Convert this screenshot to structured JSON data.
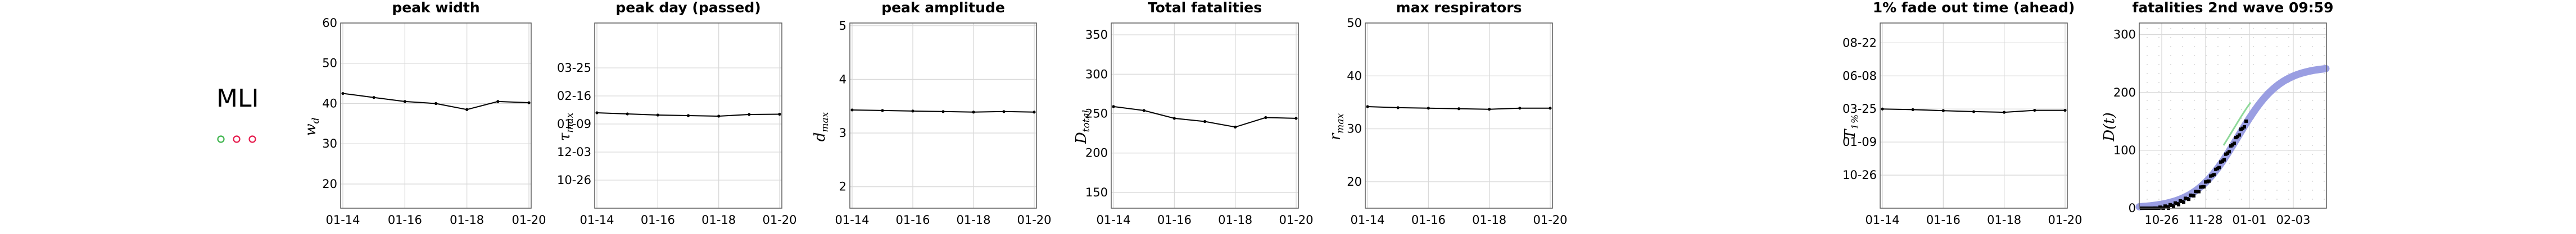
{
  "model_label": "MLI",
  "markers": [
    {
      "color": "#3cb44b"
    },
    {
      "color": "#e6194b"
    },
    {
      "color": "#e6194b"
    }
  ],
  "colors": {
    "band": "#8f93df",
    "points": "#000000",
    "fit": "#8fd99a"
  },
  "chart_data": [
    {
      "type": "line",
      "title": "peak width",
      "ylabel": "w_d",
      "x": [
        "01-14",
        "01-15",
        "01-16",
        "01-17",
        "01-18",
        "01-19",
        "01-20"
      ],
      "x_ticks": [
        "01-14",
        "01-16",
        "01-18",
        "01-20"
      ],
      "y_ticks": [
        "20",
        "30",
        "40",
        "50",
        "60"
      ],
      "ylim": [
        14,
        60
      ],
      "values": [
        42.5,
        41.5,
        40.5,
        40,
        38.5,
        40.5,
        40.2
      ],
      "grid": true
    },
    {
      "type": "line",
      "title": "peak day (passed)",
      "ylabel": "τ_max",
      "x": [
        "01-14",
        "01-15",
        "01-16",
        "01-17",
        "01-18",
        "01-19",
        "01-20"
      ],
      "x_ticks": [
        "01-14",
        "01-16",
        "01-18",
        "01-20"
      ],
      "y_ticks": [
        "10-26",
        "12-03",
        "01-09",
        "02-16",
        "03-25"
      ],
      "ylim": [
        0,
        6.6
      ],
      "values": [
        3.4,
        3.36,
        3.32,
        3.3,
        3.28,
        3.34,
        3.35
      ],
      "grid": true
    },
    {
      "type": "line",
      "title": "peak amplitude",
      "ylabel": "d_max",
      "x": [
        "01-14",
        "01-15",
        "01-16",
        "01-17",
        "01-18",
        "01-19",
        "01-20"
      ],
      "x_ticks": [
        "01-14",
        "01-16",
        "01-18",
        "01-20"
      ],
      "y_ticks": [
        "2",
        "3",
        "4",
        "5"
      ],
      "ylim": [
        1.6,
        5.05
      ],
      "values": [
        3.43,
        3.42,
        3.41,
        3.4,
        3.39,
        3.4,
        3.39
      ],
      "grid": true
    },
    {
      "type": "line",
      "title": "Total fatalities",
      "ylabel": "D_total",
      "x": [
        "01-14",
        "01-15",
        "01-16",
        "01-17",
        "01-18",
        "01-19",
        "01-20"
      ],
      "x_ticks": [
        "01-14",
        "01-16",
        "01-18",
        "01-20"
      ],
      "y_ticks": [
        "150",
        "200",
        "250",
        "300",
        "350"
      ],
      "ylim": [
        130,
        365
      ],
      "values": [
        259,
        254,
        244,
        240,
        233,
        245,
        244
      ],
      "grid": true
    },
    {
      "type": "line",
      "title": "max respirators",
      "ylabel": "r_max",
      "x": [
        "01-14",
        "01-15",
        "01-16",
        "01-17",
        "01-18",
        "01-19",
        "01-20"
      ],
      "x_ticks": [
        "01-14",
        "01-16",
        "01-18",
        "01-20"
      ],
      "y_ticks": [
        "20",
        "30",
        "40",
        "50"
      ],
      "ylim": [
        15,
        50
      ],
      "values": [
        34.2,
        34,
        33.9,
        33.8,
        33.7,
        33.9,
        33.9
      ],
      "grid": true
    },
    {
      "type": "line",
      "title": "1% fade out time (ahead)",
      "ylabel": "T_1%",
      "x": [
        "01-14",
        "01-15",
        "01-16",
        "01-17",
        "01-18",
        "01-19",
        "01-20"
      ],
      "x_ticks": [
        "01-14",
        "01-16",
        "01-18",
        "01-20"
      ],
      "y_ticks": [
        "10-26",
        "01-09",
        "03-25",
        "06-08",
        "08-22"
      ],
      "ylim": [
        0,
        5.6
      ],
      "values": [
        3.0,
        2.98,
        2.95,
        2.92,
        2.9,
        2.96,
        2.96
      ],
      "grid": true
    },
    {
      "type": "scatter",
      "title": "fatalities 2nd wave 09:59",
      "ylabel": "D(t)",
      "x_ticks": [
        "10-26",
        "11-28",
        "01-01",
        "02-03"
      ],
      "y_ticks": [
        "0",
        "100",
        "200",
        "300"
      ],
      "ylim": [
        0,
        320
      ],
      "grid": true
    }
  ]
}
